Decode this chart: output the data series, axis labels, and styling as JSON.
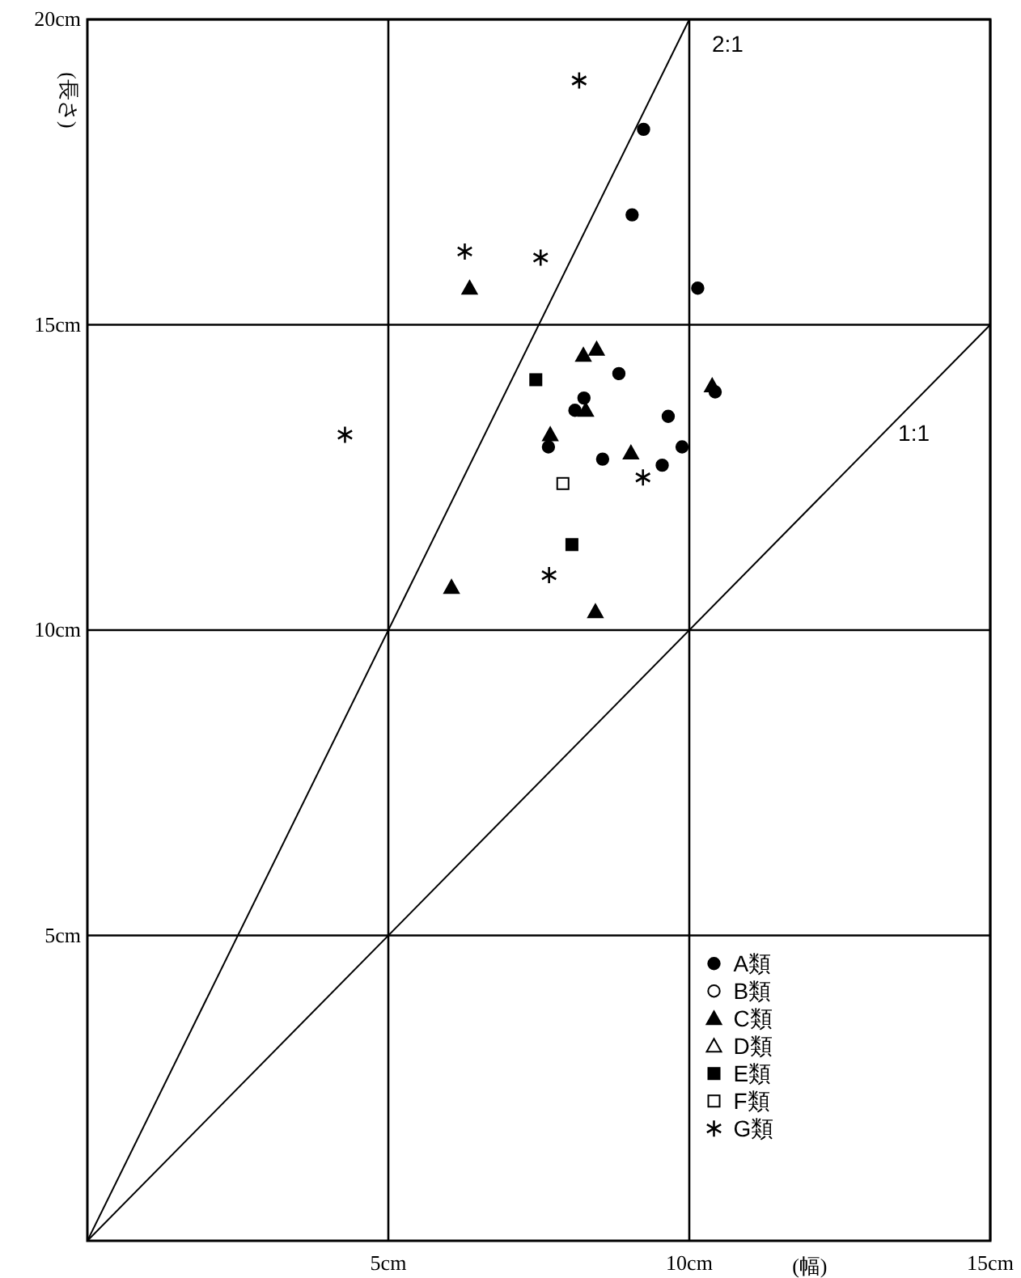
{
  "chart_data": {
    "type": "scatter",
    "xlabel": "(幅)",
    "ylabel": "(長さ)",
    "xlim": [
      0,
      15
    ],
    "ylim": [
      0,
      20
    ],
    "xticks": [
      {
        "value": 5,
        "label": "5cm"
      },
      {
        "value": 10,
        "label": "10cm"
      },
      {
        "value": 15,
        "label": "15cm"
      }
    ],
    "yticks": [
      {
        "value": 5,
        "label": "5cm"
      },
      {
        "value": 10,
        "label": "10cm"
      },
      {
        "value": 15,
        "label": "15cm"
      },
      {
        "value": 20,
        "label": "20cm"
      }
    ],
    "grid": true,
    "legend": "bottom right",
    "series": [
      {
        "name": "A類",
        "marker": "circle",
        "color": "#000000",
        "x": [
          9.24,
          9.05,
          10.14,
          8.83,
          8.25,
          8.1,
          10.43,
          9.65,
          7.66,
          9.88,
          8.56,
          9.55
        ],
        "values": [
          18.2,
          16.8,
          15.6,
          14.2,
          13.8,
          13.6,
          13.9,
          13.5,
          13.0,
          13.0,
          12.8,
          12.7
        ]
      },
      {
        "name": "B類",
        "marker": "circle",
        "color": "#ffffff"
      },
      {
        "name": "C類",
        "marker": "triangle",
        "color": "#000000",
        "x": [
          6.35,
          8.24,
          8.46,
          8.28,
          10.38,
          7.69,
          9.03,
          6.05,
          8.44
        ],
        "values": [
          15.6,
          14.5,
          14.6,
          13.6,
          14.0,
          13.2,
          12.9,
          10.7,
          10.3
        ]
      },
      {
        "name": "D類",
        "marker": "triangle",
        "color": "#ffffff"
      },
      {
        "name": "E類",
        "marker": "square",
        "color": "#000000",
        "x": [
          7.45,
          8.05
        ],
        "values": [
          14.1,
          11.4
        ]
      },
      {
        "name": "F類",
        "marker": "square",
        "color": "#ffffff",
        "x": [
          7.9
        ],
        "values": [
          12.4
        ]
      },
      {
        "name": "G類",
        "marker": "cross",
        "color": "#000000",
        "x": [
          8.17,
          6.27,
          7.53,
          4.28,
          9.23,
          7.67
        ],
        "values": [
          19.0,
          16.2,
          16.1,
          13.2,
          12.5,
          10.9
        ]
      },
      {
        "name": "2:1",
        "type": "line",
        "color": "#000000",
        "x": [
          0,
          10
        ],
        "values": [
          0,
          20
        ]
      },
      {
        "name": "1:1",
        "type": "line",
        "color": "#000000",
        "x": [
          0,
          15
        ],
        "values": [
          0,
          15
        ]
      }
    ]
  }
}
